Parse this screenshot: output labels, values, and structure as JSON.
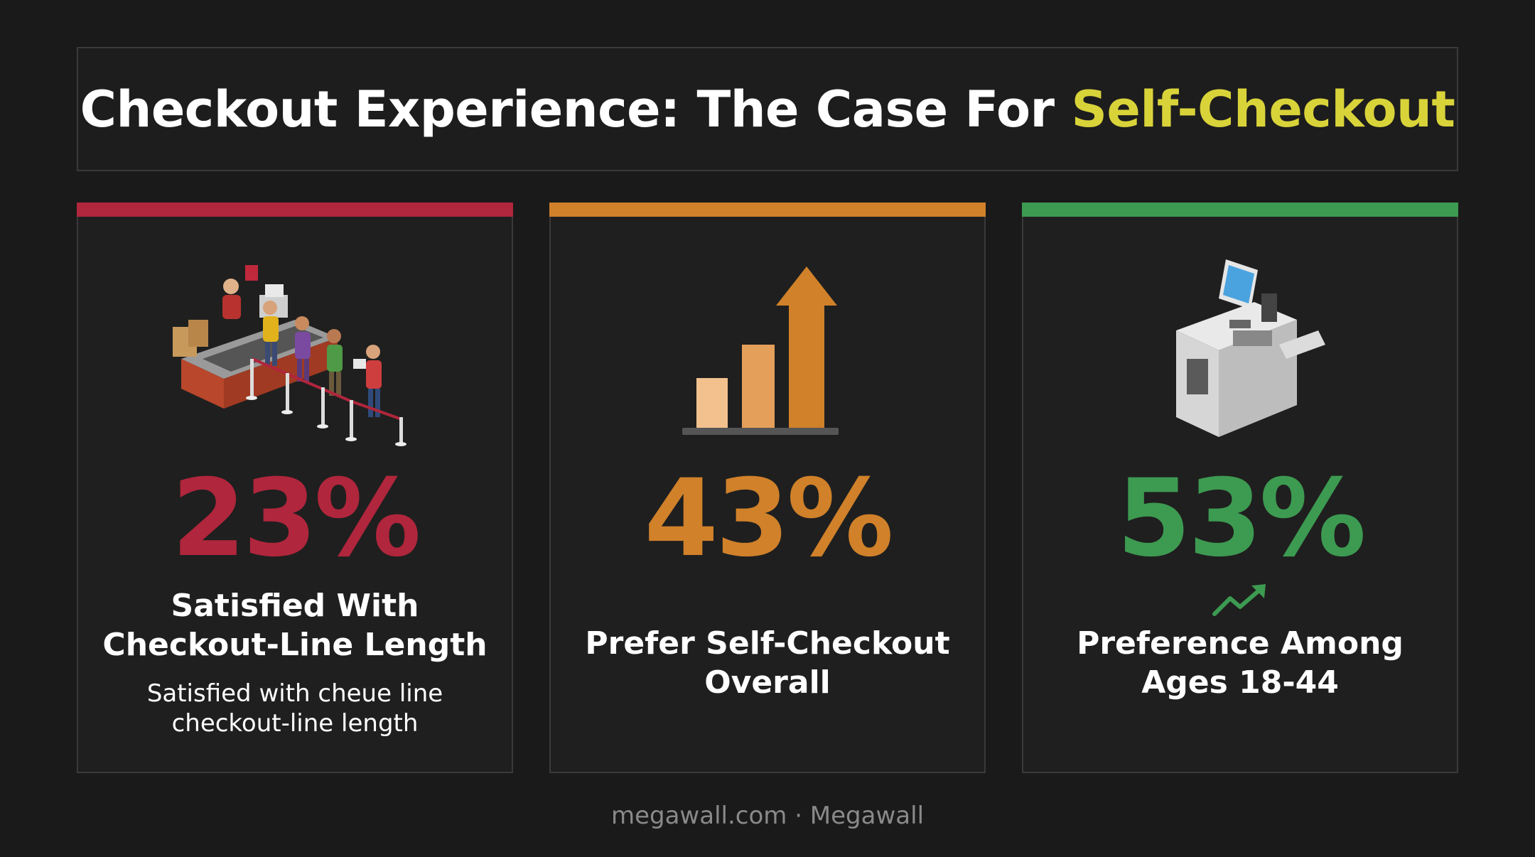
{
  "title": {
    "main": "Checkout Experience: The Case For ",
    "highlight": "Self-Checkout"
  },
  "colors": {
    "background": "#1a1a1a",
    "highlight": "#d9d33a",
    "red": "#b0263c",
    "orange": "#d0812a",
    "green": "#3d9a51"
  },
  "cards": [
    {
      "accent": "#b0263c",
      "icon": "checkout-queue-icon",
      "value": "23%",
      "label_line1": "Satisfied With",
      "label_line2": "Checkout-Line Length",
      "sub_line1": "Satisfied with cheue line",
      "sub_line2": "checkout-line length"
    },
    {
      "accent": "#d0812a",
      "icon": "bar-chart-up-arrow-icon",
      "value": "43%",
      "label_line1": "Prefer Self-Checkout",
      "label_line2": "Overall"
    },
    {
      "accent": "#3d9a51",
      "icon": "self-checkout-kiosk-icon",
      "trend_icon": "trend-up-icon",
      "value": "53%",
      "label_line1": "Preference Among",
      "label_line2": "Ages 18-44"
    }
  ],
  "footer": {
    "text": "megawall.com · Megawall"
  }
}
